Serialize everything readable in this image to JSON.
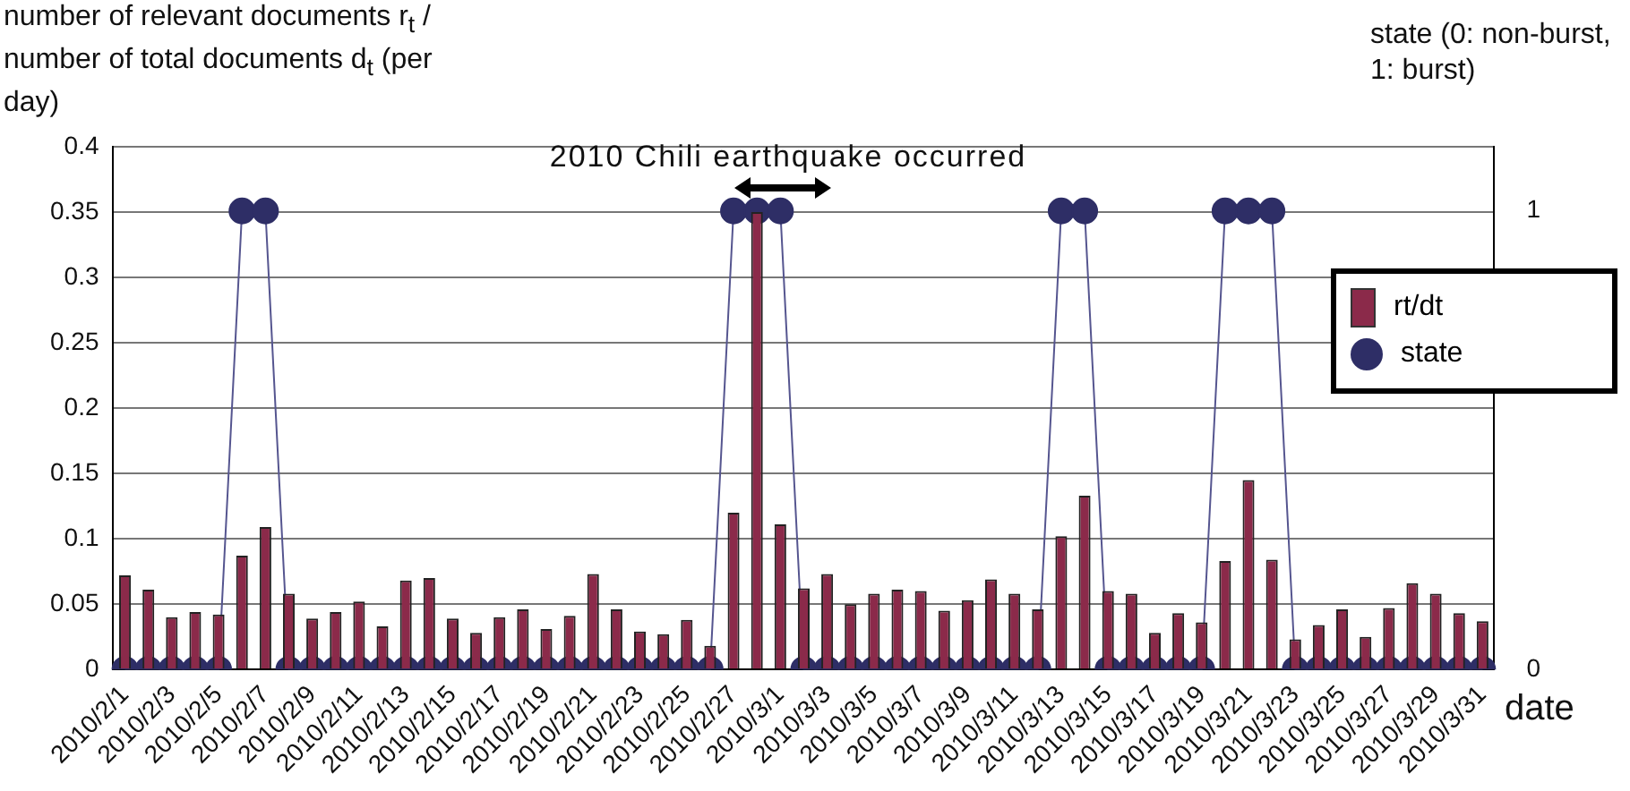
{
  "chart_data": {
    "type": "bar",
    "ylabel": "number of relevant documents r$_{t}$ / number of total documents d$_{t}$ (per day)",
    "y2label": "state (0: non-burst, 1: burst)",
    "xlabel": "date",
    "annotations": [
      "2010 Chili earthquake occurred"
    ],
    "categories": [
      "2010/2/1",
      null,
      "2010/2/3",
      null,
      "2010/2/5",
      null,
      "2010/2/7",
      null,
      "2010/2/9",
      null,
      "2010/2/11",
      null,
      "2010/2/13",
      null,
      "2010/2/15",
      null,
      "2010/2/17",
      null,
      "2010/2/19",
      null,
      "2010/2/21",
      null,
      "2010/2/23",
      null,
      "2010/2/25",
      null,
      "2010/2/27",
      null,
      "2010/3/1",
      null,
      "2010/3/3",
      null,
      "2010/3/5",
      null,
      "2010/3/7",
      null,
      "2010/3/9",
      null,
      "2010/3/11",
      null,
      "2010/3/13",
      null,
      "2010/3/15",
      null,
      "2010/3/17",
      null,
      "2010/3/19",
      null,
      "2010/3/21",
      null,
      "2010/3/23",
      null,
      "2010/3/25",
      null,
      "2010/3/27",
      null,
      "2010/3/29",
      null,
      "2010/3/31"
    ],
    "series": [
      {
        "name": "rt/dt",
        "color": "#8b2a4a",
        "values": [
          0.072,
          0.061,
          0.04,
          0.044,
          0.042,
          0.087,
          0.109,
          0.058,
          0.039,
          0.044,
          0.052,
          0.033,
          0.068,
          0.07,
          0.039,
          0.028,
          0.04,
          0.046,
          0.031,
          0.041,
          0.073,
          0.046,
          0.029,
          0.027,
          0.038,
          0.018,
          0.12,
          0.35,
          0.111,
          0.062,
          0.073,
          0.05,
          0.058,
          0.061,
          0.06,
          0.045,
          0.053,
          0.069,
          0.058,
          0.046,
          0.102,
          0.133,
          0.06,
          0.058,
          0.028,
          0.043,
          0.036,
          0.083,
          0.145,
          0.084,
          0.023,
          0.034,
          0.046,
          0.025,
          0.047,
          0.066,
          0.058,
          0.043,
          0.037
        ]
      },
      {
        "name": "state",
        "type": "line",
        "axis": "y2",
        "color": "#2e2e66",
        "values": [
          0,
          0,
          0,
          0,
          0,
          1,
          1,
          0,
          0,
          0,
          0,
          0,
          0,
          0,
          0,
          0,
          0,
          0,
          0,
          0,
          0,
          0,
          0,
          0,
          0,
          0,
          1,
          1,
          1,
          0,
          0,
          0,
          0,
          0,
          0,
          0,
          0,
          0,
          0,
          0,
          1,
          1,
          0,
          0,
          0,
          0,
          0,
          1,
          1,
          1,
          0,
          0,
          0,
          0,
          0,
          0,
          0,
          0,
          0
        ]
      }
    ],
    "ylim": [
      0,
      0.4
    ],
    "yticks": [
      0,
      0.05,
      0.1,
      0.15,
      0.2,
      0.25,
      0.3,
      0.35,
      0.4
    ],
    "y2lim": [
      0,
      1.14
    ],
    "y2ticks": [
      0,
      1
    ],
    "grid": "y",
    "legend": "right",
    "marker": "circle",
    "line_style": "solid"
  }
}
